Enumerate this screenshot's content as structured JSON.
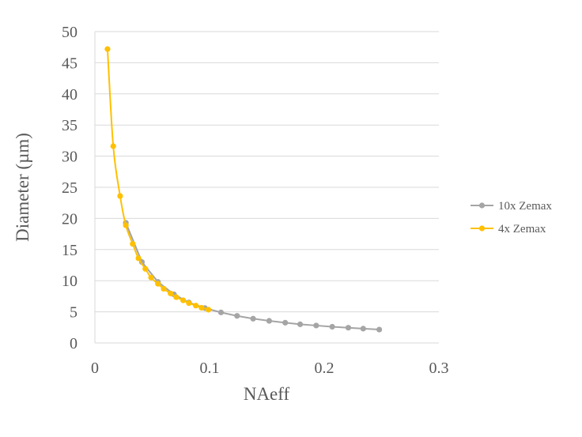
{
  "chart_data": {
    "type": "scatter",
    "title": "",
    "xlabel": "NAeff",
    "ylabel": "Diameter (µm)",
    "xlim": [
      0,
      0.3
    ],
    "ylim": [
      0,
      50
    ],
    "x_ticks": [
      "0",
      "0.1",
      "0.2",
      "0.3"
    ],
    "y_ticks": [
      "0",
      "5",
      "10",
      "15",
      "20",
      "25",
      "30",
      "35",
      "40",
      "45",
      "50"
    ],
    "grid": "horizontal",
    "legend_position": "right",
    "series": [
      {
        "name": "10x Zemax",
        "color": "#a5a5a5",
        "line": "straight",
        "points": [
          [
            0.027,
            19.3
          ],
          [
            0.041,
            13.0
          ],
          [
            0.055,
            9.8
          ],
          [
            0.069,
            7.8
          ],
          [
            0.082,
            6.5
          ],
          [
            0.096,
            5.6
          ],
          [
            0.11,
            4.9
          ],
          [
            0.124,
            4.35
          ],
          [
            0.138,
            3.9
          ],
          [
            0.152,
            3.55
          ],
          [
            0.166,
            3.25
          ],
          [
            0.179,
            3.0
          ],
          [
            0.193,
            2.8
          ],
          [
            0.207,
            2.6
          ],
          [
            0.221,
            2.45
          ],
          [
            0.234,
            2.3
          ],
          [
            0.248,
            2.15
          ]
        ]
      },
      {
        "name": "4x Zemax",
        "color": "#ffc000",
        "line": "smooth",
        "points": [
          [
            0.011,
            47.2
          ],
          [
            0.016,
            31.6
          ],
          [
            0.022,
            23.6
          ],
          [
            0.027,
            18.9
          ],
          [
            0.033,
            15.9
          ],
          [
            0.038,
            13.6
          ],
          [
            0.044,
            11.9
          ],
          [
            0.049,
            10.5
          ],
          [
            0.055,
            9.5
          ],
          [
            0.06,
            8.7
          ],
          [
            0.066,
            7.95
          ],
          [
            0.071,
            7.35
          ],
          [
            0.077,
            6.85
          ],
          [
            0.082,
            6.4
          ],
          [
            0.088,
            6.0
          ],
          [
            0.093,
            5.65
          ],
          [
            0.099,
            5.35
          ]
        ]
      }
    ]
  }
}
